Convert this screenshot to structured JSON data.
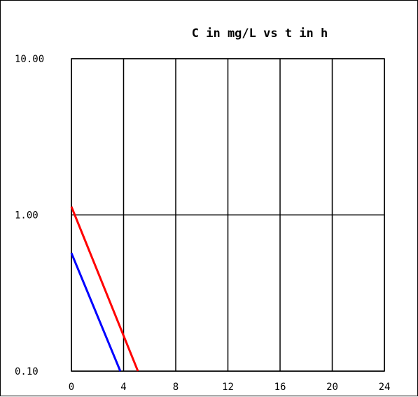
{
  "chart_data": {
    "type": "line",
    "title": "C in mg/L vs t in h",
    "xlabel": "",
    "ylabel": "",
    "xlim": [
      0,
      24
    ],
    "ylim": [
      0.1,
      10
    ],
    "yscale": "log",
    "grid": true,
    "x_ticks": [
      0,
      4,
      8,
      12,
      16,
      20,
      24
    ],
    "x_tick_labels": [
      "0",
      "4",
      "8",
      "12",
      "16",
      "20",
      "24"
    ],
    "y_ticks": [
      0.1,
      1,
      10
    ],
    "y_tick_labels": [
      "0.10",
      "1.00",
      "10.00"
    ],
    "series": [
      {
        "color": "#ff0000",
        "points": [
          [
            0,
            1.13
          ],
          [
            5.1,
            0.1
          ]
        ]
      },
      {
        "color": "#0000ff",
        "points": [
          [
            0,
            0.57
          ],
          [
            3.75,
            0.1
          ]
        ]
      }
    ]
  }
}
